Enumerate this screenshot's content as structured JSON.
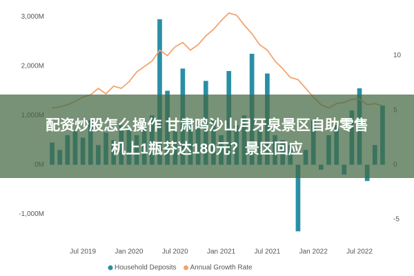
{
  "chart_data": {
    "type": "bar-line",
    "categories": [
      null,
      null,
      null,
      null,
      "Jul 2019",
      null,
      null,
      null,
      null,
      null,
      "Jan 2020",
      null,
      null,
      null,
      null,
      null,
      "Jul 2020",
      null,
      null,
      null,
      null,
      null,
      "Jan 2021",
      null,
      null,
      null,
      null,
      null,
      "Jul 2021",
      null,
      null,
      null,
      null,
      null,
      "Jan 2022",
      null,
      null,
      null,
      null,
      null,
      "Jul 2022",
      null,
      null,
      null
    ],
    "series": [
      {
        "name": "Household Deposits",
        "color": "#2a8fa6",
        "type": "bar",
        "values": [
          450,
          300,
          600,
          700,
          550,
          900,
          400,
          650,
          500,
          800,
          750,
          600,
          850,
          1000,
          2950,
          1500,
          700,
          1950,
          900,
          800,
          1700,
          900,
          600,
          1900,
          800,
          1000,
          2250,
          700,
          1850,
          600,
          500,
          400,
          -1350,
          300,
          900,
          -100,
          600,
          800,
          -200,
          1100,
          1550,
          -330,
          400,
          1200
        ]
      },
      {
        "name": "Annual Growth Rate",
        "color": "#f4a26b",
        "type": "line",
        "axis": "y2",
        "values": [
          5.2,
          5.3,
          5.5,
          5.8,
          6.2,
          6.4,
          7.0,
          6.5,
          7.2,
          7.0,
          7.6,
          8.5,
          9.0,
          9.5,
          10.5,
          10.0,
          10.8,
          11.2,
          10.5,
          11.0,
          11.8,
          12.4,
          13.2,
          13.9,
          13.7,
          12.8,
          12.0,
          11.0,
          10.5,
          9.5,
          8.8,
          8.0,
          7.8,
          7.0,
          6.2,
          5.5,
          5.2,
          5.6,
          5.7,
          6.0,
          6.0,
          5.5,
          5.6,
          5.4
        ]
      }
    ],
    "ylim": [
      -1500,
      3200
    ],
    "yticks": [
      {
        "value": -1000,
        "label": "-1,000M"
      },
      {
        "value": 0,
        "label": "0M"
      },
      {
        "value": 1000,
        "label": "1,000M"
      },
      {
        "value": 2000,
        "label": "2,000M"
      },
      {
        "value": 3000,
        "label": "3,000M"
      }
    ],
    "y2lim": [
      -6.78,
      14.46
    ],
    "y2ticks": [
      -5,
      0,
      5,
      10
    ],
    "grid": false,
    "legend": "bottom"
  },
  "overlay": {
    "lines": [
      "配资炒股怎么操作 甘肃鸣沙山月牙泉景区自助零售",
      "机上1瓶芬达180元？景区回应"
    ]
  }
}
